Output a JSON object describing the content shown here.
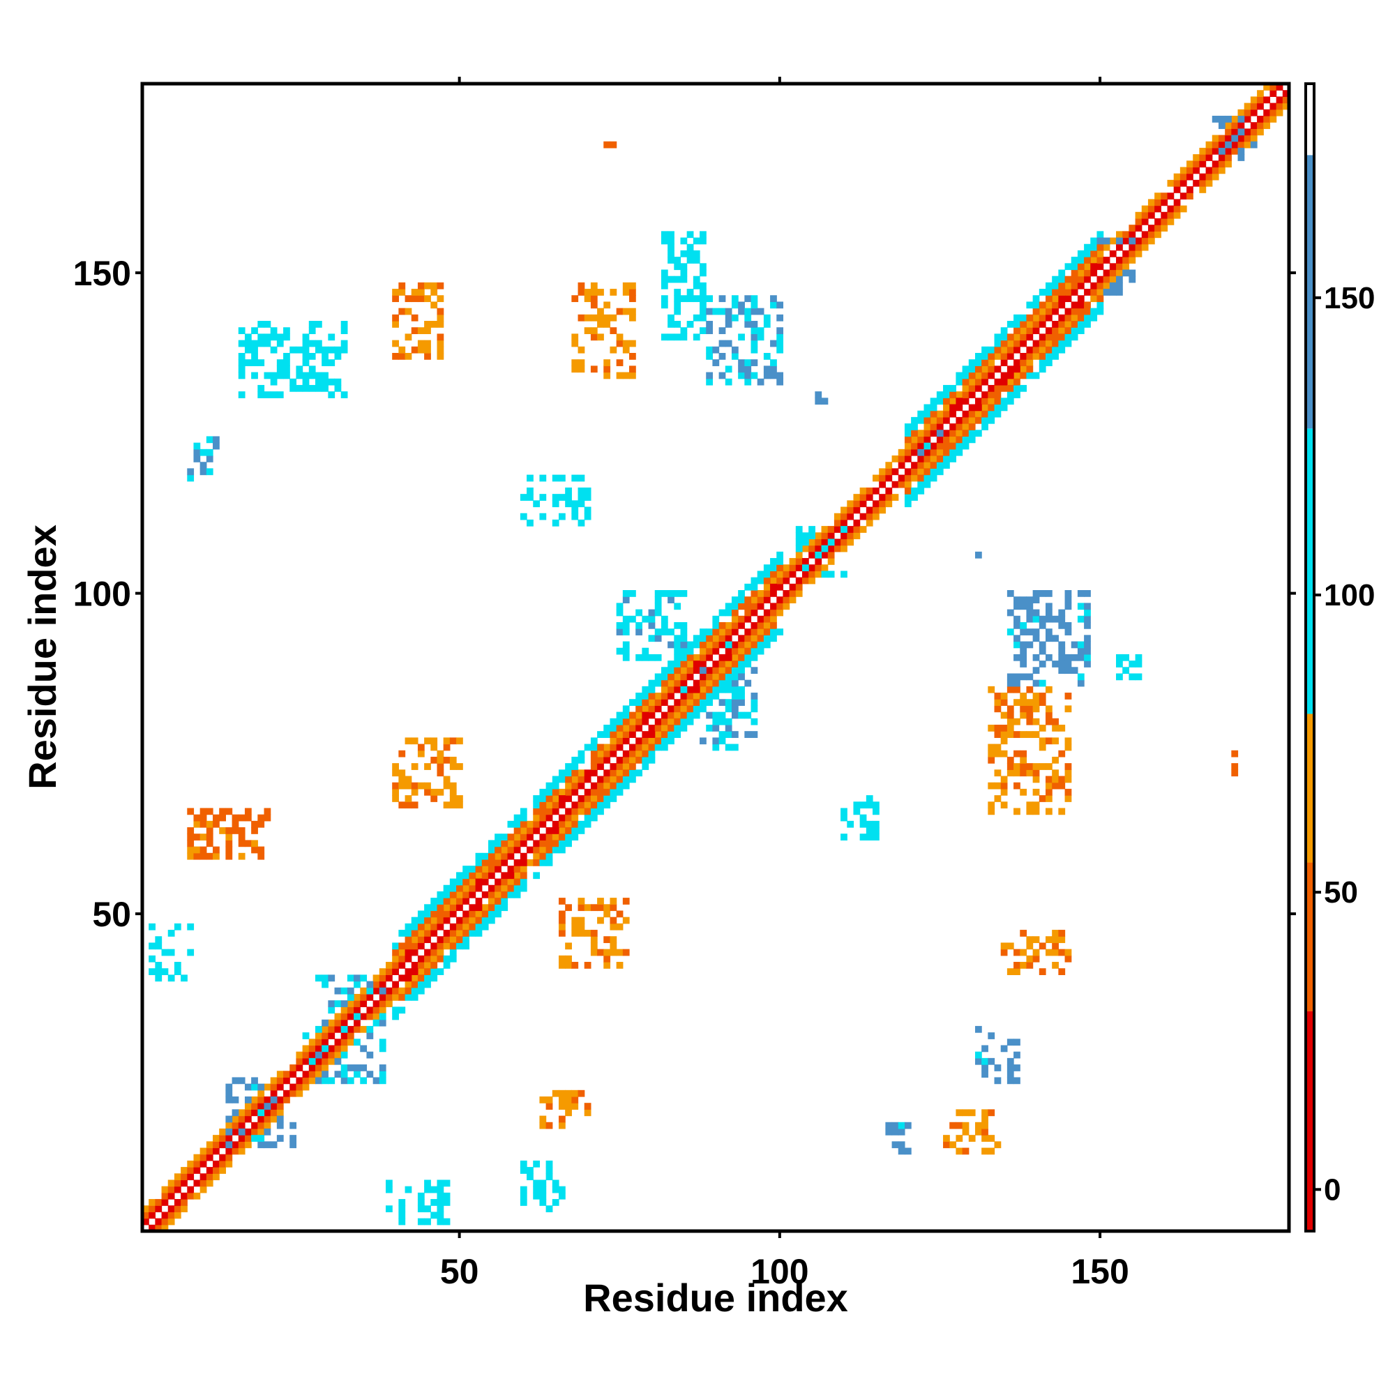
{
  "chart_data": {
    "type": "heatmap",
    "title": "",
    "xlabel": "Residue index",
    "ylabel": "Residue index",
    "xlim": [
      1,
      179
    ],
    "ylim": [
      1,
      179
    ],
    "xticks": [
      50,
      100,
      150
    ],
    "yticks": [
      50,
      100,
      150
    ],
    "grid": false,
    "colorbar": {
      "ticks": [
        0,
        50,
        100,
        150
      ],
      "range": [
        -7,
        186
      ],
      "bands": [
        {
          "from": -7,
          "to": 30,
          "color": "#e00000"
        },
        {
          "from": 30,
          "to": 55,
          "color": "#f06000"
        },
        {
          "from": 55,
          "to": 80,
          "color": "#f59a00"
        },
        {
          "from": 80,
          "to": 128,
          "color": "#00e0f0"
        },
        {
          "from": 128,
          "to": 174,
          "color": "#4a90c8"
        },
        {
          "from": 174,
          "to": 186,
          "color": "#ffffff"
        }
      ]
    },
    "contact_regions": [
      {
        "kind": "diagonal",
        "from": 1,
        "to": 179,
        "half_width": 3,
        "values": [
          5,
          35,
          60,
          100
        ]
      },
      {
        "kind": "diagonal",
        "from": 40,
        "to": 60,
        "half_width": 6,
        "values": [
          20,
          45,
          95
        ]
      },
      {
        "kind": "diagonal",
        "from": 62,
        "to": 100,
        "half_width": 6,
        "values": [
          20,
          50,
          100
        ]
      },
      {
        "kind": "diagonal",
        "from": 120,
        "to": 150,
        "half_width": 6,
        "values": [
          20,
          50,
          100
        ]
      },
      {
        "kind": "block",
        "x": [
          14,
          24
        ],
        "y": [
          14,
          24
        ],
        "value": 140
      },
      {
        "kind": "block",
        "x": [
          26,
          32
        ],
        "y": [
          26,
          32
        ],
        "value": 110
      },
      {
        "kind": "block",
        "x": [
          85,
          92
        ],
        "y": [
          85,
          92
        ],
        "value": 120
      },
      {
        "kind": "block",
        "x": [
          103,
          110
        ],
        "y": [
          103,
          110
        ],
        "value": 110
      },
      {
        "kind": "block",
        "x": [
          121,
          127
        ],
        "y": [
          121,
          127
        ],
        "value": 140
      },
      {
        "kind": "block",
        "x": [
          147,
          155
        ],
        "y": [
          147,
          155
        ],
        "value": 150
      },
      {
        "kind": "block",
        "x": [
          168,
          174
        ],
        "y": [
          168,
          174
        ],
        "value": 150
      },
      {
        "kind": "block",
        "x": [
          8,
          12
        ],
        "y": [
          118,
          124
        ],
        "value": 135
      },
      {
        "kind": "block",
        "x": [
          82,
          88
        ],
        "y": [
          140,
          156
        ],
        "value": 110
      },
      {
        "kind": "block",
        "x": [
          89,
          100
        ],
        "y": [
          133,
          146
        ],
        "value": 130
      },
      {
        "kind": "block",
        "x": [
          68,
          77
        ],
        "y": [
          134,
          148
        ],
        "value": 60
      },
      {
        "kind": "block",
        "x": [
          40,
          47
        ],
        "y": [
          137,
          148
        ],
        "value": 60
      },
      {
        "kind": "block",
        "x": [
          16,
          32
        ],
        "y": [
          131,
          142
        ],
        "value": 100
      },
      {
        "kind": "block",
        "x": [
          8,
          20
        ],
        "y": [
          59,
          66
        ],
        "value": 45
      },
      {
        "kind": "block",
        "x": [
          2,
          8
        ],
        "y": [
          40,
          48
        ],
        "value": 100
      },
      {
        "kind": "block",
        "x": [
          40,
          50
        ],
        "y": [
          67,
          77
        ],
        "value": 55
      },
      {
        "kind": "block",
        "x": [
          66,
          76
        ],
        "y": [
          42,
          52
        ],
        "value": 60
      },
      {
        "kind": "block",
        "x": [
          63,
          70
        ],
        "y": [
          17,
          22
        ],
        "value": 60
      },
      {
        "kind": "block",
        "x": [
          60,
          66
        ],
        "y": [
          4,
          11
        ],
        "value": 100
      },
      {
        "kind": "block",
        "x": [
          39,
          48
        ],
        "y": [
          2,
          8
        ],
        "value": 110
      },
      {
        "kind": "block",
        "x": [
          28,
          38
        ],
        "y": [
          24,
          40
        ],
        "value": 130
      },
      {
        "kind": "block",
        "x": [
          117,
          120
        ],
        "y": [
          13,
          17
        ],
        "value": 140
      },
      {
        "kind": "block",
        "x": [
          126,
          134
        ],
        "y": [
          13,
          19
        ],
        "value": 60
      },
      {
        "kind": "block",
        "x": [
          131,
          137
        ],
        "y": [
          24,
          32
        ],
        "value": 140
      },
      {
        "kind": "block",
        "x": [
          135,
          145
        ],
        "y": [
          41,
          47
        ],
        "value": 60
      },
      {
        "kind": "block",
        "x": [
          133,
          145
        ],
        "y": [
          66,
          85
        ],
        "value": 60
      },
      {
        "kind": "block",
        "x": [
          136,
          148
        ],
        "y": [
          86,
          100
        ],
        "value": 140
      },
      {
        "kind": "block",
        "x": [
          153,
          156
        ],
        "y": [
          87,
          90
        ],
        "value": 100
      },
      {
        "kind": "block",
        "x": [
          75,
          85
        ],
        "y": [
          90,
          100
        ],
        "value": 120
      },
      {
        "kind": "block",
        "x": [
          88,
          96
        ],
        "y": [
          76,
          88
        ],
        "value": 125
      },
      {
        "kind": "block",
        "x": [
          110,
          115
        ],
        "y": [
          62,
          69
        ],
        "value": 100
      },
      {
        "kind": "block",
        "x": [
          60,
          70
        ],
        "y": [
          111,
          118
        ],
        "value": 100
      },
      {
        "kind": "block",
        "x": [
          170,
          171
        ],
        "y": [
          72,
          75
        ],
        "value": 40
      },
      {
        "kind": "block",
        "x": [
          72,
          75
        ],
        "y": [
          169,
          170
        ],
        "value": 40
      },
      {
        "kind": "block",
        "x": [
          106,
          107
        ],
        "y": [
          130,
          131
        ],
        "value": 140
      },
      {
        "kind": "block",
        "x": [
          131,
          132
        ],
        "y": [
          106,
          107
        ],
        "value": 140
      }
    ]
  }
}
